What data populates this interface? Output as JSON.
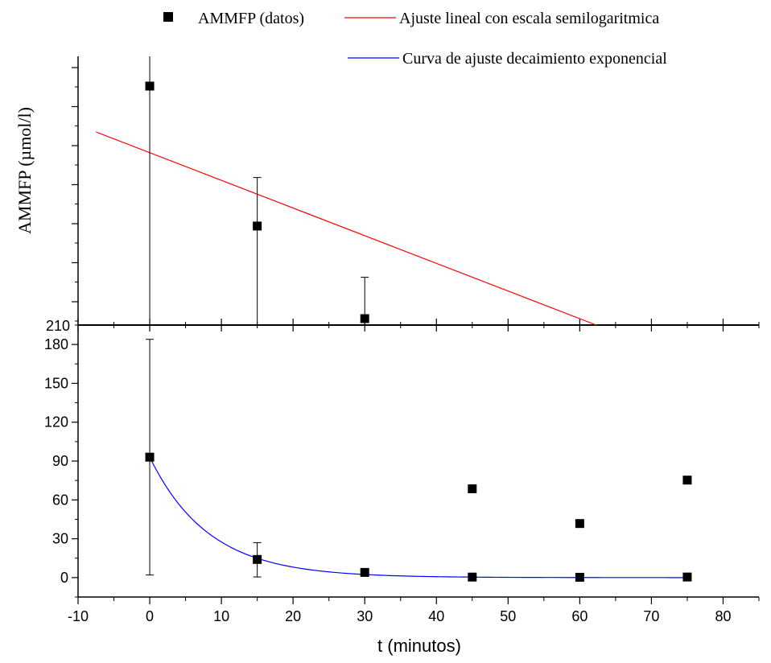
{
  "chart_data": {
    "type": "scatter",
    "xlabel": "t (minutos)",
    "ylabel": "AMMFP (µmol/l)",
    "xlim": [
      -10,
      85
    ],
    "x_ticks": [
      -10,
      0,
      10,
      20,
      30,
      40,
      50,
      60,
      70,
      80
    ],
    "legend": [
      {
        "label": "AMMFP (datos)",
        "marker": "square",
        "color": "#000000"
      },
      {
        "label": "Ajuste lineal con escala semilogaritmica",
        "marker": "line",
        "color": "#ff0000"
      },
      {
        "label": "Curva de ajuste decaimiento exponencial",
        "marker": "line",
        "color": "#0000ff"
      }
    ],
    "panels": [
      {
        "position": "top",
        "scale": "log",
        "y_tick_labels": [
          "210"
        ],
        "series": [
          {
            "name": "AMMFP (datos)",
            "color": "#000000",
            "points": [
              {
                "x": 0,
                "y": 93,
                "y_low": 2,
                "y_high": 184
              },
              {
                "x": 15,
                "y": 14,
                "y_low": 0.5,
                "y_high": 27
              },
              {
                "x": 30,
                "y": 4,
                "y_low": 1.2,
                "y_high": 7
              },
              {
                "x": 45,
                "y": 0.4,
                "y_low": 0.12,
                "y_high": 0.75
              },
              {
                "x": 60,
                "y": 0.25,
                "y_low": 0.1,
                "y_high": 0.4
              },
              {
                "x": 75,
                "y": 0.45,
                "y_low": 0.1,
                "y_high": 0.8
              }
            ]
          },
          {
            "name": "Ajuste lineal con escala semilogaritmica",
            "color": "#ff0000",
            "line": {
              "x": [
                -7.5,
                62.3
              ],
              "y": [
                50,
                0.1
              ]
            }
          }
        ]
      },
      {
        "position": "bottom",
        "scale": "linear",
        "ylim": [
          -15,
          195
        ],
        "y_ticks": [
          0,
          30,
          60,
          90,
          120,
          150,
          180
        ],
        "series": [
          {
            "name": "AMMFP (datos)",
            "color": "#000000",
            "points": [
              {
                "x": 0,
                "y": 93,
                "y_low": 2,
                "y_high": 184
              },
              {
                "x": 15,
                "y": 14,
                "y_low": 0.5,
                "y_high": 27
              },
              {
                "x": 30,
                "y": 4,
                "y_low": 1.2,
                "y_high": 7
              },
              {
                "x": 45,
                "y": 0.4,
                "y_low": 0.12,
                "y_high": 0.75
              },
              {
                "x": 60,
                "y": 0.25,
                "y_low": 0.1,
                "y_high": 0.4
              },
              {
                "x": 75,
                "y": 0.45,
                "y_low": 0.1,
                "y_high": 0.8
              }
            ]
          },
          {
            "name": "Curva de ajuste decaimiento exponencial",
            "color": "#0000ff",
            "fit": {
              "model": "exponential",
              "a": 93,
              "k": 0.122,
              "x_range": [
                0,
                75
              ]
            }
          }
        ]
      }
    ]
  }
}
